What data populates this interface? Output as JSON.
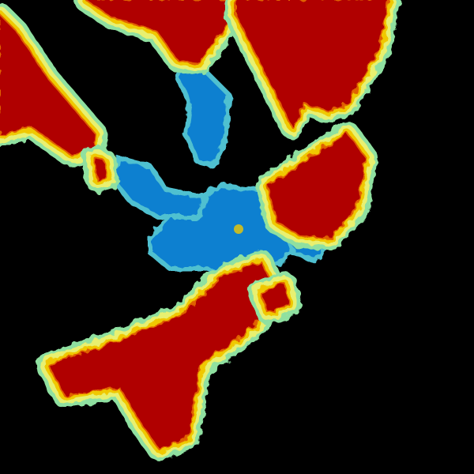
{
  "background": "#000000",
  "palette": {
    "edge": "#8fe0a0",
    "light": "#e8f070",
    "yellow": "#f0c800",
    "orange": "#e06000",
    "core": "#b00000",
    "blue": "#1080d0",
    "cyan": "#50c0d0"
  }
}
